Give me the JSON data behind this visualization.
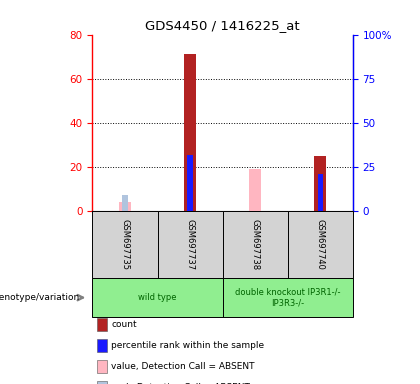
{
  "title": "GDS4450 / 1416225_at",
  "samples": [
    "GSM697735",
    "GSM697737",
    "GSM697738",
    "GSM697740"
  ],
  "count_values": [
    null,
    71,
    null,
    25
  ],
  "percentile_values": [
    null,
    32,
    null,
    21
  ],
  "absent_value_values": [
    4,
    null,
    19,
    null
  ],
  "absent_rank_values": [
    9,
    null,
    null,
    null
  ],
  "ylim_left": [
    0,
    80
  ],
  "ylim_right": [
    0,
    100
  ],
  "yticks_left": [
    0,
    20,
    40,
    60,
    80
  ],
  "yticks_right": [
    0,
    25,
    50,
    75,
    100
  ],
  "left_tick_labels": [
    "0",
    "20",
    "40",
    "60",
    "80"
  ],
  "right_tick_labels": [
    "0",
    "25",
    "50",
    "75",
    "100%"
  ],
  "color_count": "#b22222",
  "color_percentile": "#1a1aff",
  "color_absent_value": "#ffb6c1",
  "color_absent_rank": "#b0c4de",
  "color_gray_box": "#d3d3d3",
  "color_green_box": "#90ee90",
  "color_green_text": "#006400",
  "bar_width": 0.18,
  "legend_items": [
    {
      "label": "count",
      "color": "#b22222"
    },
    {
      "label": "percentile rank within the sample",
      "color": "#1a1aff"
    },
    {
      "label": "value, Detection Call = ABSENT",
      "color": "#ffb6c1"
    },
    {
      "label": "rank, Detection Call = ABSENT",
      "color": "#b0c4de"
    }
  ]
}
